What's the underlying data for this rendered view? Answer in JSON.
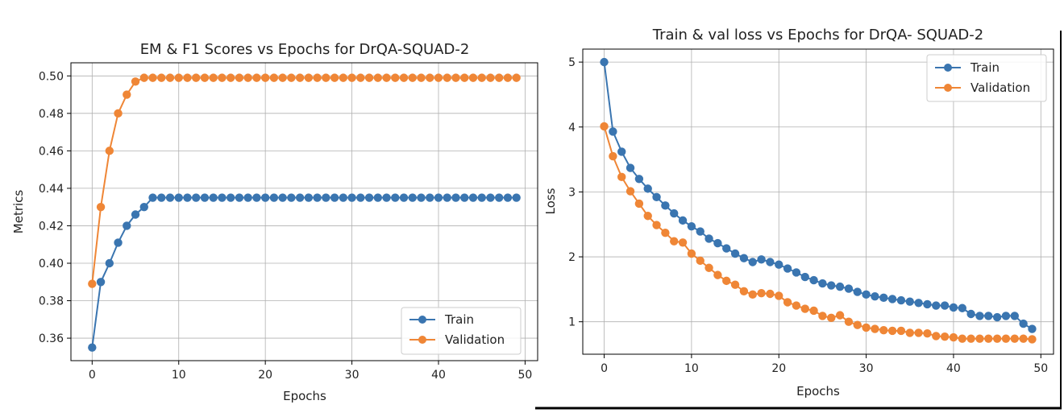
{
  "chart_data": [
    {
      "type": "line",
      "title": "EM & F1 Scores vs Epochs for DrQA-SQUAD-2",
      "xlabel": "Epochs",
      "ylabel": "Metrics",
      "xlim": [
        -2.45,
        51.45
      ],
      "ylim": [
        0.348,
        0.507
      ],
      "xticks": [
        0,
        10,
        20,
        30,
        40,
        50
      ],
      "yticks": [
        0.36,
        0.38,
        0.4,
        0.42,
        0.44,
        0.46,
        0.48,
        0.5
      ],
      "ytick_labels": [
        "0.36",
        "0.38",
        "0.40",
        "0.42",
        "0.44",
        "0.46",
        "0.48",
        "0.50"
      ],
      "grid": true,
      "legend_position": "lower-right",
      "series": [
        {
          "name": "Train",
          "color": "#3a75b0",
          "values": [
            0.355,
            0.39,
            0.4,
            0.411,
            0.42,
            0.426,
            0.43,
            0.435,
            0.435,
            0.435,
            0.435,
            0.435,
            0.435,
            0.435,
            0.435,
            0.435,
            0.435,
            0.435,
            0.435,
            0.435,
            0.435,
            0.435,
            0.435,
            0.435,
            0.435,
            0.435,
            0.435,
            0.435,
            0.435,
            0.435,
            0.435,
            0.435,
            0.435,
            0.435,
            0.435,
            0.435,
            0.435,
            0.435,
            0.435,
            0.435,
            0.435,
            0.435,
            0.435,
            0.435,
            0.435,
            0.435,
            0.435,
            0.435,
            0.435,
            0.435
          ]
        },
        {
          "name": "Validation",
          "color": "#ef8636",
          "values": [
            0.389,
            0.43,
            0.46,
            0.48,
            0.49,
            0.497,
            0.499,
            0.499,
            0.499,
            0.499,
            0.499,
            0.499,
            0.499,
            0.499,
            0.499,
            0.499,
            0.499,
            0.499,
            0.499,
            0.499,
            0.499,
            0.499,
            0.499,
            0.499,
            0.499,
            0.499,
            0.499,
            0.499,
            0.499,
            0.499,
            0.499,
            0.499,
            0.499,
            0.499,
            0.499,
            0.499,
            0.499,
            0.499,
            0.499,
            0.499,
            0.499,
            0.499,
            0.499,
            0.499,
            0.499,
            0.499,
            0.499,
            0.499,
            0.499,
            0.499
          ]
        }
      ]
    },
    {
      "type": "line",
      "title": "Train & val loss vs Epochs for DrQA- SQUAD-2",
      "xlabel": "Epochs",
      "ylabel": "Loss",
      "xlim": [
        -2.45,
        51.45
      ],
      "ylim": [
        0.5,
        5.2
      ],
      "xticks": [
        0,
        10,
        20,
        30,
        40,
        50
      ],
      "yticks": [
        1,
        2,
        3,
        4,
        5
      ],
      "ytick_labels": [
        "1",
        "2",
        "3",
        "4",
        "5"
      ],
      "grid": true,
      "legend_position": "upper-right",
      "series": [
        {
          "name": "Train",
          "color": "#3a75b0",
          "values": [
            5.0,
            3.93,
            3.62,
            3.37,
            3.2,
            3.05,
            2.92,
            2.79,
            2.67,
            2.56,
            2.47,
            2.39,
            2.28,
            2.21,
            2.13,
            2.05,
            1.98,
            1.92,
            1.96,
            1.92,
            1.88,
            1.82,
            1.76,
            1.69,
            1.64,
            1.59,
            1.56,
            1.54,
            1.51,
            1.46,
            1.42,
            1.39,
            1.37,
            1.35,
            1.33,
            1.31,
            1.29,
            1.27,
            1.25,
            1.25,
            1.22,
            1.21,
            1.12,
            1.09,
            1.09,
            1.07,
            1.09,
            1.09,
            0.97,
            0.89
          ]
        },
        {
          "name": "Validation",
          "color": "#ef8636",
          "values": [
            4.01,
            3.55,
            3.23,
            3.01,
            2.82,
            2.63,
            2.49,
            2.37,
            2.24,
            2.22,
            2.05,
            1.94,
            1.83,
            1.72,
            1.63,
            1.57,
            1.47,
            1.42,
            1.44,
            1.43,
            1.4,
            1.3,
            1.25,
            1.2,
            1.17,
            1.09,
            1.06,
            1.1,
            1.0,
            0.95,
            0.91,
            0.89,
            0.87,
            0.86,
            0.86,
            0.83,
            0.83,
            0.82,
            0.78,
            0.77,
            0.76,
            0.74,
            0.74,
            0.74,
            0.74,
            0.74,
            0.74,
            0.74,
            0.74,
            0.73
          ]
        }
      ]
    }
  ]
}
